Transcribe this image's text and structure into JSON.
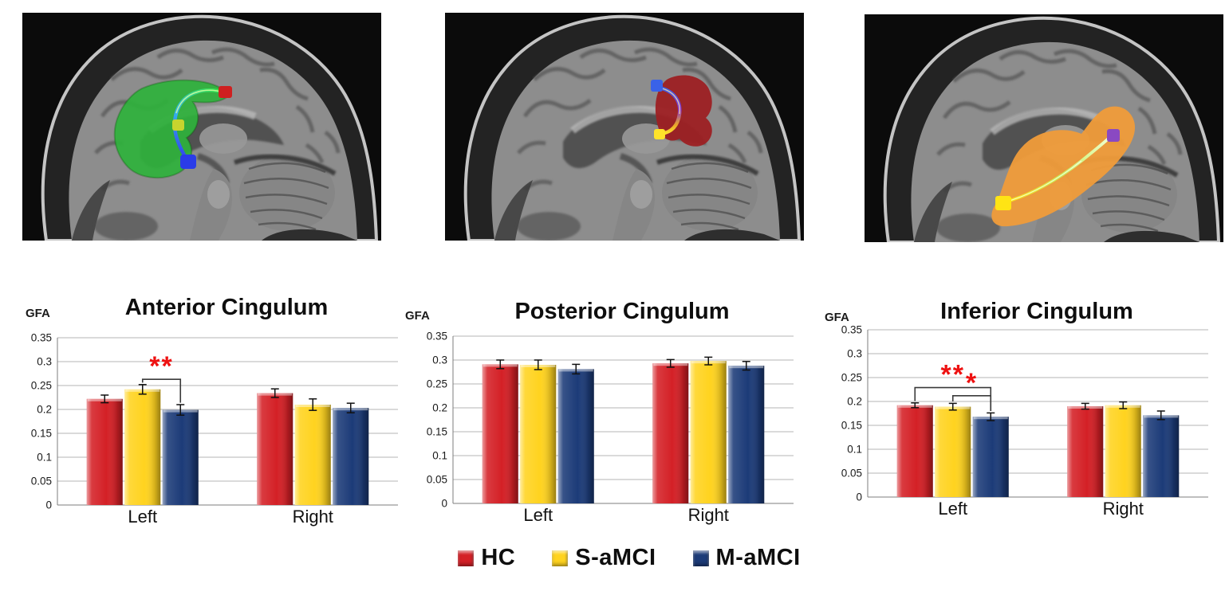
{
  "figure": {
    "background": "#ffffff",
    "description": "Three sagittal brain MRI panels with cingulum tract ROIs above three GFA bar charts"
  },
  "brains": [
    {
      "name": "anterior-cingulum-roi",
      "region_color": "#2fb23c",
      "marker_colors": [
        "#cf2020",
        "#c6d42e",
        "#2a3ce8"
      ],
      "tract_colors": [
        "#35e848",
        "#35b0ee",
        "#3346ec"
      ]
    },
    {
      "name": "posterior-cingulum-roi",
      "region_color": "#9d2023",
      "marker_colors": [
        "#3a62e8",
        "#ffe32a"
      ],
      "tract_colors": [
        "#3a62e8",
        "#8a35cc",
        "#e8a52a",
        "#ffe32a"
      ]
    },
    {
      "name": "inferior-cingulum-roi",
      "region_color": "#f09c3a",
      "marker_colors": [
        "#ffe414",
        "#8a49c2"
      ],
      "tract_colors": [
        "#ffe414",
        "#c6f05a",
        "#f2ffd8"
      ]
    }
  ],
  "chart_data": [
    {
      "type": "bar",
      "title": "Anterior Cingulum",
      "axis_label": "GFA",
      "categories": [
        "Left",
        "Right"
      ],
      "ylim": [
        0,
        0.35
      ],
      "yticks": [
        "0.35",
        "0.3",
        "0.25",
        "0.2",
        "0.15",
        "0.1",
        "0.05",
        "0"
      ],
      "grid": true,
      "series": [
        {
          "name": "HC",
          "color": "#d42026",
          "values": [
            0.222,
            0.234
          ],
          "errors": [
            0.008,
            0.009
          ]
        },
        {
          "name": "S-aMCI",
          "color": "#ffd31f",
          "values": [
            0.242,
            0.21
          ],
          "errors": [
            0.01,
            0.012
          ]
        },
        {
          "name": "M-aMCI",
          "color": "#1c3b78",
          "values": [
            0.199,
            0.203
          ],
          "errors": [
            0.011,
            0.01
          ]
        }
      ],
      "significance": [
        {
          "category": 0,
          "from": 1,
          "to": 2,
          "label": "**",
          "y": 0.263,
          "color": "#ee1111"
        }
      ]
    },
    {
      "type": "bar",
      "title": "Posterior Cingulum",
      "axis_label": "GFA",
      "categories": [
        "Left",
        "Right"
      ],
      "ylim": [
        0,
        0.35
      ],
      "yticks": [
        "0.35",
        "0.3",
        "0.25",
        "0.2",
        "0.15",
        "0.1",
        "0.05",
        "0"
      ],
      "grid": true,
      "series": [
        {
          "name": "HC",
          "color": "#d42026",
          "values": [
            0.291,
            0.293
          ],
          "errors": [
            0.009,
            0.008
          ]
        },
        {
          "name": "S-aMCI",
          "color": "#ffd31f",
          "values": [
            0.29,
            0.298
          ],
          "errors": [
            0.01,
            0.008
          ]
        },
        {
          "name": "M-aMCI",
          "color": "#1c3b78",
          "values": [
            0.281,
            0.288
          ],
          "errors": [
            0.01,
            0.009
          ]
        }
      ],
      "significance": []
    },
    {
      "type": "bar",
      "title": "Inferior Cingulum",
      "axis_label": "GFA",
      "categories": [
        "Left",
        "Right"
      ],
      "ylim": [
        0,
        0.35
      ],
      "yticks": [
        "0.35",
        "0.3",
        "0.25",
        "0.2",
        "0.15",
        "0.1",
        "0.05",
        "0"
      ],
      "grid": true,
      "series": [
        {
          "name": "HC",
          "color": "#d42026",
          "values": [
            0.192,
            0.19
          ],
          "errors": [
            0.005,
            0.006
          ]
        },
        {
          "name": "S-aMCI",
          "color": "#ffd31f",
          "values": [
            0.189,
            0.192
          ],
          "errors": [
            0.007,
            0.007
          ]
        },
        {
          "name": "M-aMCI",
          "color": "#1c3b78",
          "values": [
            0.168,
            0.171
          ],
          "errors": [
            0.008,
            0.009
          ]
        }
      ],
      "significance": [
        {
          "category": 0,
          "from": 0,
          "to": 2,
          "label": "**",
          "y": 0.229,
          "color": "#ee1111"
        },
        {
          "category": 0,
          "from": 1,
          "to": 2,
          "label": "*",
          "y": 0.212,
          "color": "#ee1111"
        }
      ]
    }
  ],
  "legend": {
    "items": [
      {
        "label": "HC",
        "color": "#d42026"
      },
      {
        "label": "S-aMCI",
        "color": "#ffd31f"
      },
      {
        "label": "M-aMCI",
        "color": "#1c3b78"
      }
    ]
  }
}
